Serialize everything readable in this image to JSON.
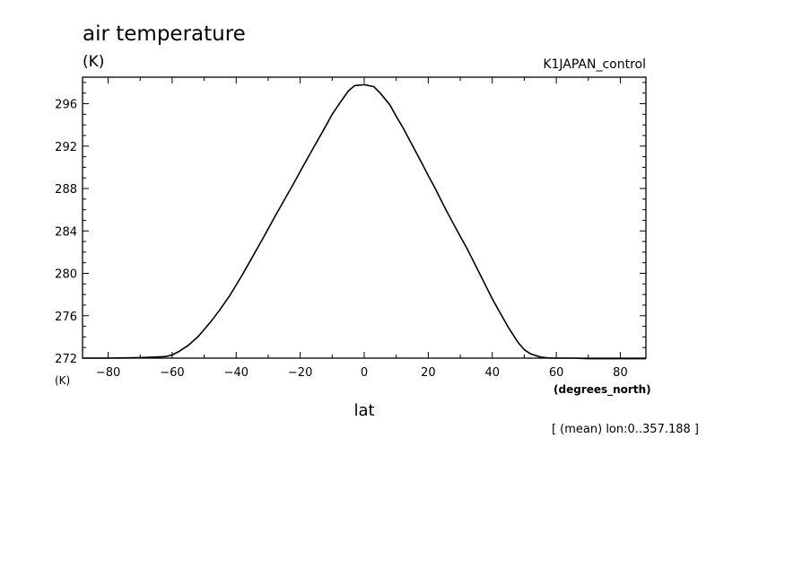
{
  "chart_data": {
    "type": "line",
    "title": "air temperature",
    "title_units": "(K)",
    "experiment": "K1JAPAN_control",
    "xlabel": "lat",
    "x_units": "(degrees_north)",
    "y_units": "(K)",
    "mean_note": "[ (mean) lon:0..357.188 ]",
    "xlim": [
      -88,
      88
    ],
    "ylim": [
      272,
      298.5
    ],
    "x_ticks": [
      -80,
      -60,
      -40,
      -20,
      0,
      20,
      40,
      60,
      80
    ],
    "x_tick_labels": [
      "−80",
      "−60",
      "−40",
      "−20",
      "0",
      "20",
      "40",
      "60",
      "80"
    ],
    "y_ticks": [
      272,
      276,
      280,
      284,
      288,
      292,
      296
    ],
    "y_tick_labels": [
      "272",
      "276",
      "280",
      "284",
      "288",
      "292",
      "296"
    ],
    "grid": false,
    "series": [
      {
        "x": [
          -88,
          -80,
          -70,
          -65,
          -62,
          -60,
          -58,
          -55,
          -52,
          -50,
          -48,
          -45,
          -42,
          -40,
          -38,
          -35,
          -32,
          -30,
          -28,
          -25,
          -22,
          -20,
          -18,
          -15,
          -12,
          -10,
          -8,
          -5,
          -3,
          0,
          3,
          5,
          8,
          10,
          12,
          15,
          18,
          20,
          22,
          25,
          28,
          30,
          32,
          35,
          38,
          40,
          42,
          45,
          48,
          50,
          52,
          55,
          58,
          60,
          62,
          65,
          70,
          80,
          88
        ],
        "y": [
          272.0,
          272.0,
          272.05,
          272.1,
          272.15,
          272.3,
          272.6,
          273.2,
          274.0,
          274.7,
          275.4,
          276.6,
          277.9,
          278.9,
          279.9,
          281.5,
          283.1,
          284.2,
          285.3,
          286.9,
          288.5,
          289.6,
          290.7,
          292.3,
          293.9,
          295.0,
          295.9,
          297.2,
          297.7,
          297.8,
          297.6,
          297.0,
          295.9,
          294.8,
          293.8,
          292.1,
          290.4,
          289.2,
          288.1,
          286.3,
          284.6,
          283.5,
          282.4,
          280.6,
          278.8,
          277.6,
          276.5,
          274.9,
          273.5,
          272.8,
          272.4,
          272.1,
          272.0,
          272.0,
          272.0,
          272.0,
          271.95,
          271.95,
          271.95
        ]
      }
    ]
  }
}
